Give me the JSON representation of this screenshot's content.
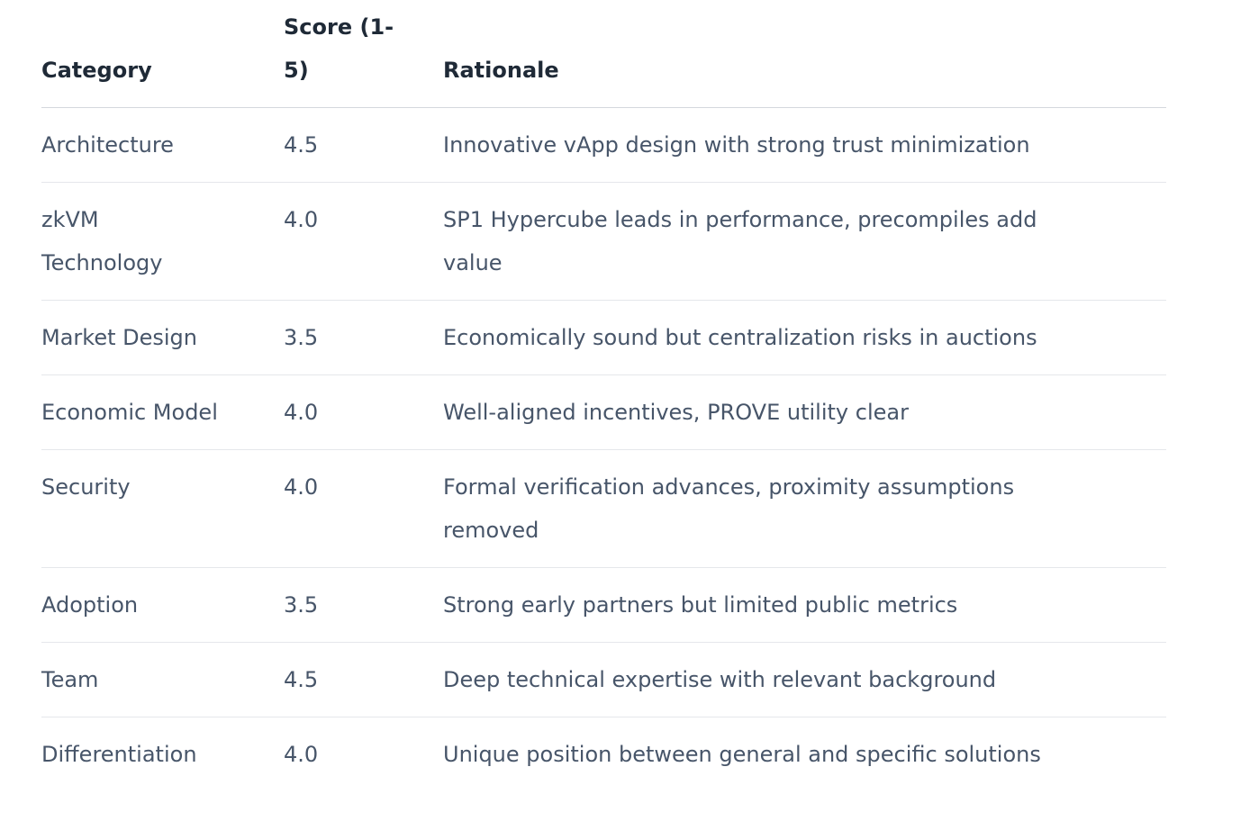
{
  "theme": {
    "header_text": "#1f2a37",
    "body_text": "#475569",
    "header_border": "#d4d8dd",
    "row_border": "#e5e7eb",
    "background": "#ffffff"
  },
  "table": {
    "columns": [
      {
        "key": "category",
        "label": "Category"
      },
      {
        "key": "score",
        "label": "Score (1-5)"
      },
      {
        "key": "rationale",
        "label": "Rationale"
      }
    ],
    "rows": [
      {
        "category": "Architecture",
        "score": "4.5",
        "rationale": "Innovative vApp design with strong trust minimization"
      },
      {
        "category": "zkVM Technology",
        "score": "4.0",
        "rationale": "SP1 Hypercube leads in performance, precompiles add value"
      },
      {
        "category": "Market Design",
        "score": "3.5",
        "rationale": "Economically sound but centralization risks in auctions"
      },
      {
        "category": "Economic Model",
        "score": "4.0",
        "rationale": "Well-aligned incentives, PROVE utility clear"
      },
      {
        "category": "Security",
        "score": "4.0",
        "rationale": "Formal verification advances, proximity assumptions removed"
      },
      {
        "category": "Adoption",
        "score": "3.5",
        "rationale": "Strong early partners but limited public metrics"
      },
      {
        "category": "Team",
        "score": "4.5",
        "rationale": "Deep technical expertise with relevant background"
      },
      {
        "category": "Differentiation",
        "score": "4.0",
        "rationale": "Unique position between general and specific solutions"
      }
    ]
  }
}
